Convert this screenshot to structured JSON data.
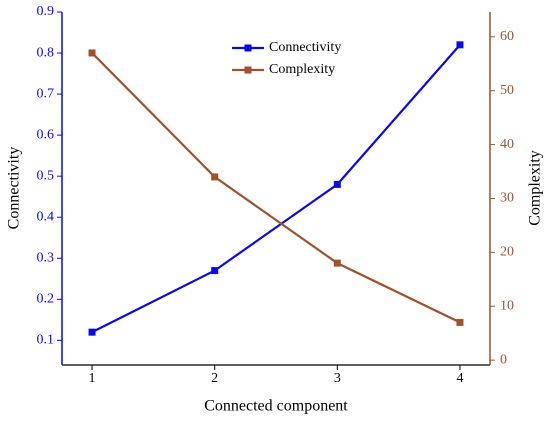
{
  "chart_data": {
    "type": "line",
    "xlabel": "Connected component",
    "ylabel": "Connectivity",
    "y2label": "Complexity",
    "x": [
      1,
      2,
      3,
      4
    ],
    "xlim": [
      0.755,
      4.245
    ],
    "xticks": [
      1,
      2,
      3,
      4
    ],
    "ylim": [
      0.04,
      0.9
    ],
    "yticks": [
      0.1,
      0.2,
      0.3,
      0.4,
      0.5,
      0.6,
      0.7,
      0.8,
      0.9
    ],
    "y2lim": [
      -0.9,
      64.6
    ],
    "y2ticks": [
      0,
      10,
      20,
      30,
      40,
      50,
      60
    ],
    "legend": "top",
    "series": [
      {
        "name": "Connectivity",
        "color": "#0a0ae6",
        "axis": "y",
        "values": [
          0.12,
          0.27,
          0.48,
          0.82
        ]
      },
      {
        "name": "Complexity",
        "color": "#a0522d",
        "axis": "y2",
        "values": [
          57,
          34,
          18,
          7
        ]
      }
    ]
  }
}
